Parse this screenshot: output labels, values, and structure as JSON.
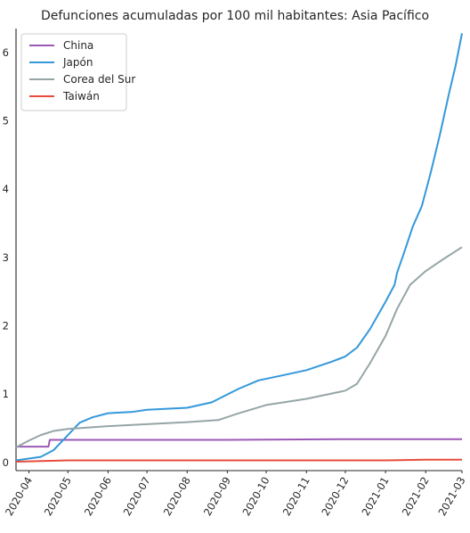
{
  "chart_data": {
    "type": "line",
    "title": "Defunciones acumuladas por 100 mil habitantes: Asia Pacífico",
    "xlabel": "",
    "ylabel": "",
    "x_ticks": [
      "2020-04",
      "2020-05",
      "2020-06",
      "2020-07",
      "2020-08",
      "2020-09",
      "2020-10",
      "2020-11",
      "2020-12",
      "2021-01",
      "2021-02",
      "2021-03"
    ],
    "y_ticks": [
      0,
      1,
      2,
      3,
      4,
      5,
      6
    ],
    "ylim": [
      -0.12,
      6.35
    ],
    "xlim": [
      "2020-03-22",
      "2021-03-01"
    ],
    "legend_position": "top-left",
    "grid": false,
    "series": [
      {
        "name": "China",
        "color": "#9b59b6",
        "points": [
          [
            "2020-03-22",
            0.23
          ],
          [
            "2020-04-16",
            0.23
          ],
          [
            "2020-04-17",
            0.33
          ],
          [
            "2020-06-01",
            0.33
          ],
          [
            "2020-09-01",
            0.33
          ],
          [
            "2020-12-01",
            0.34
          ],
          [
            "2021-03-01",
            0.34
          ]
        ]
      },
      {
        "name": "Japón",
        "color": "#3498db",
        "points": [
          [
            "2020-03-22",
            0.03
          ],
          [
            "2020-04-10",
            0.08
          ],
          [
            "2020-04-20",
            0.18
          ],
          [
            "2020-05-01",
            0.4
          ],
          [
            "2020-05-10",
            0.58
          ],
          [
            "2020-05-20",
            0.66
          ],
          [
            "2020-06-01",
            0.72
          ],
          [
            "2020-06-20",
            0.74
          ],
          [
            "2020-07-01",
            0.77
          ],
          [
            "2020-08-01",
            0.8
          ],
          [
            "2020-08-20",
            0.88
          ],
          [
            "2020-09-10",
            1.08
          ],
          [
            "2020-09-25",
            1.2
          ],
          [
            "2020-10-15",
            1.28
          ],
          [
            "2020-11-01",
            1.35
          ],
          [
            "2020-11-20",
            1.47
          ],
          [
            "2020-12-01",
            1.55
          ],
          [
            "2020-12-10",
            1.68
          ],
          [
            "2020-12-20",
            1.95
          ],
          [
            "2021-01-01",
            2.35
          ],
          [
            "2021-01-08",
            2.6
          ],
          [
            "2021-01-10",
            2.78
          ],
          [
            "2021-01-15",
            3.05
          ],
          [
            "2021-01-22",
            3.45
          ],
          [
            "2021-01-29",
            3.75
          ],
          [
            "2021-02-05",
            4.25
          ],
          [
            "2021-02-12",
            4.8
          ],
          [
            "2021-02-19",
            5.4
          ],
          [
            "2021-02-24",
            5.8
          ],
          [
            "2021-03-01",
            6.28
          ]
        ]
      },
      {
        "name": "Corea del Sur",
        "color": "#95a5a6",
        "points": [
          [
            "2020-03-22",
            0.22
          ],
          [
            "2020-04-01",
            0.32
          ],
          [
            "2020-04-10",
            0.4
          ],
          [
            "2020-04-20",
            0.46
          ],
          [
            "2020-05-01",
            0.49
          ],
          [
            "2020-06-01",
            0.53
          ],
          [
            "2020-07-01",
            0.56
          ],
          [
            "2020-08-01",
            0.59
          ],
          [
            "2020-08-25",
            0.62
          ],
          [
            "2020-09-10",
            0.72
          ],
          [
            "2020-10-01",
            0.84
          ],
          [
            "2020-11-01",
            0.93
          ],
          [
            "2020-12-01",
            1.05
          ],
          [
            "2020-12-10",
            1.15
          ],
          [
            "2020-12-20",
            1.45
          ],
          [
            "2021-01-01",
            1.85
          ],
          [
            "2021-01-10",
            2.25
          ],
          [
            "2021-01-20",
            2.6
          ],
          [
            "2021-02-01",
            2.8
          ],
          [
            "2021-02-15",
            2.98
          ],
          [
            "2021-03-01",
            3.15
          ]
        ]
      },
      {
        "name": "Taiwán",
        "color": "#e74c3c",
        "points": [
          [
            "2020-03-22",
            0.01
          ],
          [
            "2020-05-01",
            0.03
          ],
          [
            "2021-01-01",
            0.03
          ],
          [
            "2021-02-01",
            0.04
          ],
          [
            "2021-03-01",
            0.04
          ]
        ]
      }
    ]
  }
}
